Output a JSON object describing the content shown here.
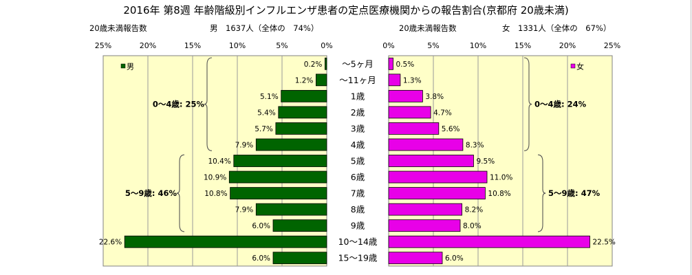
{
  "title": "2016年 第8週 年齢階級別インフルエンザ患者の定点医療機関からの報告割合(京都府 20歳未満)",
  "chart_data": {
    "type": "bar",
    "categories": [
      "～5ヶ月",
      "～11ヶ月",
      "1歳",
      "2歳",
      "3歳",
      "4歳",
      "5歳",
      "6歳",
      "7歳",
      "8歳",
      "9歳",
      "10～14歳",
      "15～19歳"
    ],
    "panels": [
      {
        "side": "left",
        "subtitle_left": "20歳未満報告数",
        "subtitle_right": "男　1637人（全体の　74%）",
        "legend": "男",
        "color": "#006400",
        "xlim": [
          0,
          25
        ],
        "reversed": true,
        "ticks": [
          "25%",
          "20%",
          "15%",
          "10%",
          "5%",
          "0%"
        ],
        "tick_values": [
          25,
          20,
          15,
          10,
          5,
          0
        ],
        "values": [
          0.2,
          1.2,
          5.1,
          5.4,
          5.7,
          7.9,
          10.4,
          10.9,
          10.8,
          7.9,
          6.0,
          22.6,
          6.0
        ],
        "labels": [
          "0.2%",
          "1.2%",
          "5.1%",
          "5.4%",
          "5.7%",
          "7.9%",
          "10.4%",
          "10.9%",
          "10.8%",
          "7.9%",
          "6.0%",
          "22.6%",
          "6.0%"
        ],
        "groups": [
          {
            "text": "0～4歳: 25%",
            "from": 0,
            "to": 5
          },
          {
            "text": "5～9歳: 46%",
            "from": 6,
            "to": 10
          }
        ]
      },
      {
        "side": "right",
        "subtitle_left": "20歳未満報告数",
        "subtitle_right": "女　1331人（全体の　67%）",
        "legend": "女",
        "color": "#e800e8",
        "xlim": [
          0,
          25
        ],
        "reversed": false,
        "ticks": [
          "0%",
          "5%",
          "10%",
          "15%",
          "20%",
          "25%"
        ],
        "tick_values": [
          0,
          5,
          10,
          15,
          20,
          25
        ],
        "values": [
          0.5,
          1.3,
          3.8,
          4.7,
          5.6,
          8.3,
          9.5,
          11.0,
          10.8,
          8.2,
          8.0,
          22.5,
          6.0
        ],
        "labels": [
          "0.5%",
          "1.3%",
          "3.8%",
          "4.7%",
          "5.6%",
          "8.3%",
          "9.5%",
          "11.0%",
          "10.8%",
          "8.2%",
          "8.0%",
          "22.5%",
          "6.0%"
        ],
        "groups": [
          {
            "text": "0～4歳: 24%",
            "from": 0,
            "to": 5
          },
          {
            "text": "5～9歳: 47%",
            "from": 6,
            "to": 10
          }
        ]
      }
    ],
    "grid": true
  }
}
